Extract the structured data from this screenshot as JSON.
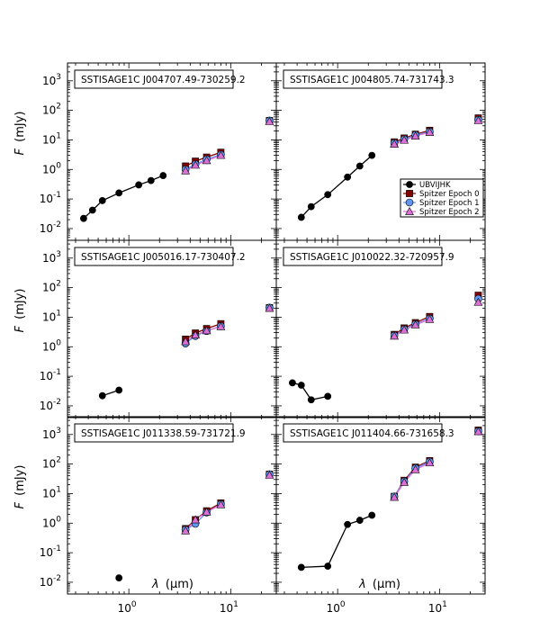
{
  "chart_data": {
    "type": "scatter",
    "xscale": "log",
    "yscale": "log",
    "xlim": [
      0.25,
      28
    ],
    "ylim": [
      0.004,
      4000
    ],
    "xlabel_italic": "λ",
    "xlabel_unit": "(μm)",
    "ylabel_italic": "F",
    "ylabel_unit": "(mJy)",
    "x_ticks": [
      {
        "value": 1,
        "base": "10",
        "exp": "0"
      },
      {
        "value": 10,
        "base": "10",
        "exp": "1"
      }
    ],
    "y_ticks": [
      {
        "value": 0.01,
        "base": "10",
        "exp": "-2"
      },
      {
        "value": 0.1,
        "base": "10",
        "exp": "-1"
      },
      {
        "value": 1,
        "base": "10",
        "exp": "0"
      },
      {
        "value": 10,
        "base": "10",
        "exp": "1"
      },
      {
        "value": 100,
        "base": "10",
        "exp": "2"
      },
      {
        "value": 1000,
        "base": "10",
        "exp": "3"
      }
    ],
    "legend": [
      "UBVIJHK",
      "Spitzer Epoch 0",
      "Spitzer Epoch 1",
      "Spitzer Epoch 2"
    ],
    "colors": {
      "optical": "#000000",
      "epoch0": "#800000",
      "epoch1": "#6495ed",
      "epoch2": "#da70d6"
    },
    "panels": [
      {
        "title": "SSTISAGE1C J004707.49-730259.2",
        "optical": {
          "x": [
            0.36,
            0.44,
            0.55,
            0.8,
            1.25,
            1.65,
            2.17
          ],
          "y": [
            0.022,
            0.042,
            0.088,
            0.16,
            0.3,
            0.42,
            0.62
          ]
        },
        "epoch0": {
          "x": [
            3.6,
            4.5,
            5.8,
            8.0,
            24
          ],
          "y": [
            1.3,
            1.9,
            2.6,
            3.8,
            45
          ]
        },
        "epoch1": {
          "x": [
            3.6,
            4.5,
            5.8,
            8.0,
            24
          ],
          "y": [
            1.0,
            1.5,
            2.2,
            3.2,
            45
          ]
        },
        "epoch2": {
          "x": [
            3.6,
            4.5,
            5.8,
            8.0,
            24
          ],
          "y": [
            0.9,
            1.4,
            2.0,
            3.0,
            42
          ]
        }
      },
      {
        "title": "SSTISAGE1C J004805.74-731743.3",
        "optical": {
          "x": [
            0.44,
            0.55,
            0.8,
            1.25,
            1.65,
            2.17
          ],
          "y": [
            0.024,
            0.055,
            0.14,
            0.55,
            1.3,
            3.0
          ]
        },
        "epoch0": {
          "x": [
            3.6,
            4.5,
            5.8,
            8.0,
            24
          ],
          "y": [
            8.5,
            11.5,
            15.5,
            21,
            55
          ]
        },
        "epoch1": {
          "x": [
            3.6,
            4.5,
            5.8,
            8.0,
            24
          ],
          "y": [
            7.8,
            10.5,
            14.5,
            19,
            48
          ]
        },
        "epoch2": {
          "x": [
            3.6,
            4.5,
            5.8,
            8.0,
            24
          ],
          "y": [
            7.2,
            9.8,
            13.5,
            18,
            45
          ]
        }
      },
      {
        "title": "SSTISAGE1C J005016.17-730407.2",
        "optical": {
          "x": [
            0.55,
            0.8
          ],
          "y": [
            0.022,
            0.034
          ]
        },
        "epoch0": {
          "x": [
            3.6,
            4.5,
            5.8,
            8.0,
            24
          ],
          "y": [
            1.8,
            2.9,
            4.1,
            6.0,
            21
          ]
        },
        "epoch1": {
          "x": [
            3.6,
            4.5,
            5.8,
            8.0,
            24
          ],
          "y": [
            1.3,
            2.3,
            3.4,
            5.0,
            21
          ]
        },
        "epoch2": {
          "x": [
            3.6,
            4.5,
            5.8,
            8.0,
            24
          ],
          "y": [
            1.5,
            2.5,
            3.5,
            4.8,
            20
          ]
        }
      },
      {
        "title": "SSTISAGE1C J010022.32-720957.9",
        "optical": {
          "x": [
            0.36,
            0.44,
            0.55,
            0.8
          ],
          "y": [
            0.06,
            0.05,
            0.016,
            0.021
          ]
        },
        "epoch0": {
          "x": [
            3.6,
            4.5,
            5.8,
            8.0,
            24
          ],
          "y": [
            2.6,
            4.3,
            6.5,
            10.5,
            55
          ]
        },
        "epoch1": {
          "x": [
            3.6,
            4.5,
            5.8,
            8.0,
            24
          ],
          "y": [
            2.4,
            3.9,
            5.8,
            9.0,
            42
          ]
        },
        "epoch2": {
          "x": [
            3.6,
            4.5,
            5.8,
            8.0,
            24
          ],
          "y": [
            2.3,
            3.7,
            5.5,
            8.5,
            32
          ]
        }
      },
      {
        "title": "SSTISAGE1C J011338.59-731721.9",
        "optical": {
          "x": [
            0.8
          ],
          "y": [
            0.014
          ]
        },
        "epoch0": {
          "x": [
            3.6,
            4.5,
            5.8,
            8.0,
            24
          ],
          "y": [
            0.65,
            1.3,
            2.6,
            4.8,
            45
          ]
        },
        "epoch1": {
          "x": [
            3.6,
            4.5,
            5.8,
            8.0,
            24
          ],
          "y": [
            0.6,
            0.95,
            2.3,
            4.4,
            45
          ]
        },
        "epoch2": {
          "x": [
            3.6,
            4.5,
            5.8,
            8.0,
            24
          ],
          "y": [
            0.55,
            1.3,
            2.4,
            4.2,
            42
          ]
        }
      },
      {
        "title": "SSTISAGE1C J011404.66-731658.3",
        "optical": {
          "x": [
            0.44,
            0.8,
            1.25,
            1.65,
            2.17
          ],
          "y": [
            0.032,
            0.035,
            0.9,
            1.25,
            1.85
          ]
        },
        "epoch0": {
          "x": [
            3.6,
            4.5,
            5.8,
            8.0,
            24
          ],
          "y": [
            8,
            28,
            78,
            130,
            1400
          ]
        },
        "epoch1": {
          "x": [
            3.6,
            4.5,
            5.8,
            8.0,
            24
          ],
          "y": [
            8,
            26,
            72,
            120,
            1300
          ]
        },
        "epoch2": {
          "x": [
            3.6,
            4.5,
            5.8,
            8.0,
            24
          ],
          "y": [
            7.5,
            24,
            65,
            110,
            1250
          ]
        }
      }
    ]
  }
}
